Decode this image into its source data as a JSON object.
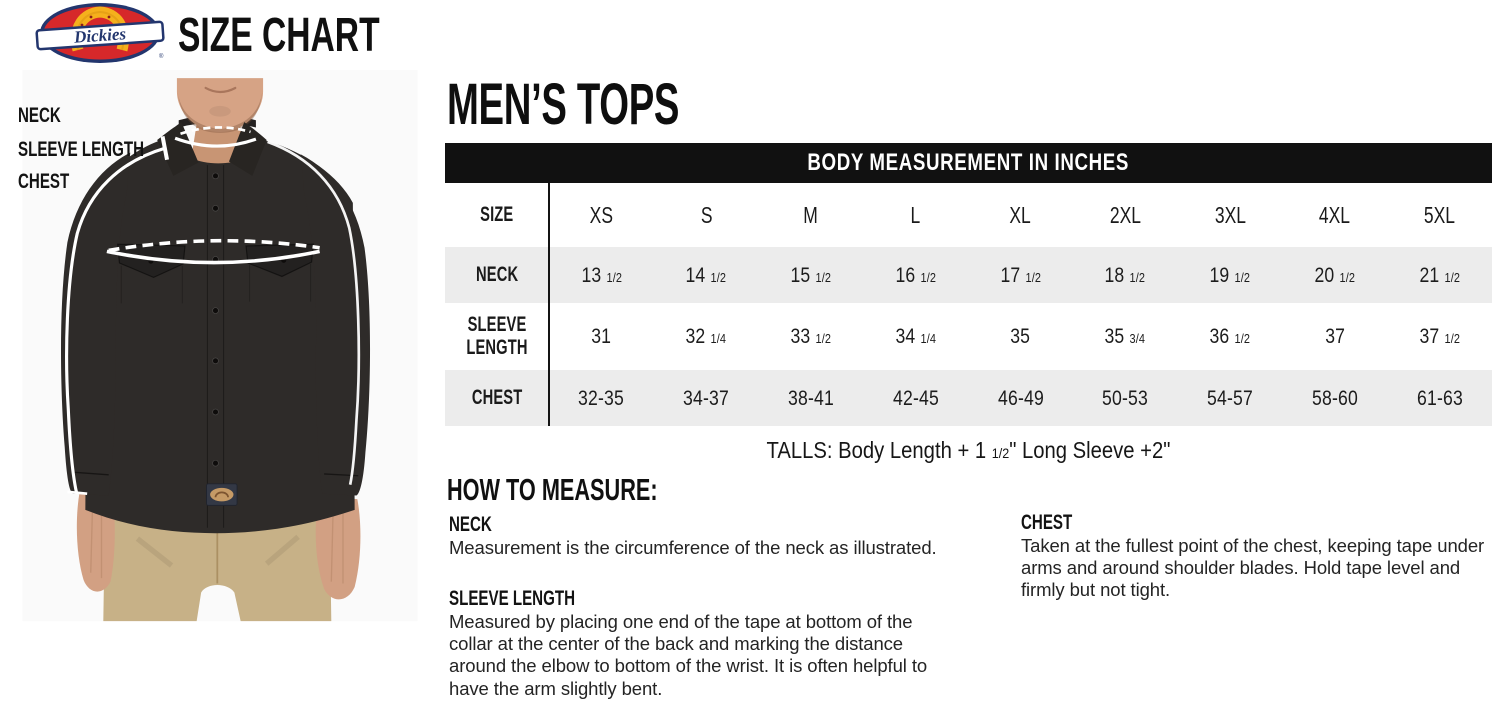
{
  "brand": {
    "logo_text": "Dickies",
    "registered_mark": "®",
    "title": "SIZE CHART"
  },
  "diagram": {
    "labels": [
      "NECK",
      "SLEEVE LENGTH",
      "CHEST"
    ]
  },
  "main": {
    "title": "MEN’S TOPS",
    "table": {
      "header": "BODY MEASUREMENT IN INCHES",
      "size_label": "SIZE",
      "columns": [
        "XS",
        "S",
        "M",
        "L",
        "XL",
        "2XL",
        "3XL",
        "4XL",
        "5XL"
      ],
      "rows": [
        {
          "label": "NECK",
          "values": [
            "13 1/2",
            "14 1/2",
            "15 1/2",
            "16 1/2",
            "17 1/2",
            "18 1/2",
            "19 1/2",
            "20 1/2",
            "21 1/2"
          ]
        },
        {
          "label": "SLEEVE LENGTH",
          "values": [
            "31",
            "32 1/4",
            "33 1/2",
            "34 1/4",
            "35",
            "35 3/4",
            "36 1/2",
            "37",
            "37 1/2"
          ]
        },
        {
          "label": "CHEST",
          "values": [
            "32-35",
            "34-37",
            "38-41",
            "42-45",
            "46-49",
            "50-53",
            "54-57",
            "58-60",
            "61-63"
          ]
        }
      ]
    },
    "talls_note": "TALLS: Body Length + 1 1/2\" Long Sleeve +2\"",
    "how_to_measure": {
      "title": "HOW TO MEASURE:",
      "sections": [
        {
          "heading": "NECK",
          "text": "Measurement is the circumference of the neck as illustrated."
        },
        {
          "heading": "SLEEVE LENGTH",
          "text": "Measured by placing one end of the tape at bottom of the collar at the center of the back and marking the distance around the elbow to bottom of the wrist. It is often helpful to have the arm slightly bent."
        },
        {
          "heading": "CHEST",
          "text": "Taken at the fullest point of the chest, keeping tape under arms and around shoulder blades. Hold tape level and firmly but not tight."
        }
      ]
    }
  },
  "colors": {
    "table_header_bg": "#111111",
    "row_alt_bg": "#ececec",
    "logo_red": "#d6282a",
    "logo_yellow": "#f5b01c",
    "logo_navy": "#23366e",
    "shirt": "#2e2b29",
    "pants_khaki": "#c7b187",
    "skin": "#d4a086",
    "measure_line": "#ffffff"
  }
}
